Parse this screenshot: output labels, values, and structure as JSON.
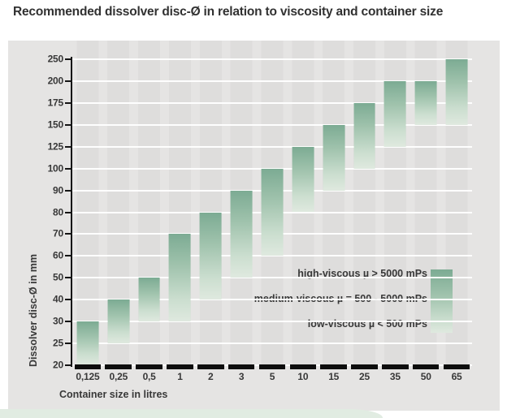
{
  "page": {
    "title": "Recommended dissolver disc-Ø in relation to viscosity and container size"
  },
  "chart_data": {
    "type": "bar",
    "subtype": "floating-range-bars-with-gradient",
    "title": "Recommended dissolver disc-Ø in relation to viscosity and container size",
    "xlabel": "Container size in litres",
    "ylabel": "Dissolver disc-Ø in mm",
    "x_categories": [
      "0,125",
      "0,25",
      "0,5",
      "1",
      "2",
      "3",
      "5",
      "10",
      "15",
      "25",
      "35",
      "50",
      "65"
    ],
    "y_ticks_top_to_bottom": [
      250,
      200,
      175,
      150,
      125,
      100,
      90,
      80,
      70,
      60,
      50,
      40,
      30,
      25,
      20
    ],
    "y_axis_note": "ordinal axis: listed tick values are evenly spaced",
    "bars": [
      {
        "container_litres": "0,125",
        "disc_mm_min": 20,
        "disc_mm_max": 30
      },
      {
        "container_litres": "0,25",
        "disc_mm_min": 25,
        "disc_mm_max": 40
      },
      {
        "container_litres": "0,5",
        "disc_mm_min": 30,
        "disc_mm_max": 50
      },
      {
        "container_litres": "1",
        "disc_mm_min": 30,
        "disc_mm_max": 70
      },
      {
        "container_litres": "2",
        "disc_mm_min": 40,
        "disc_mm_max": 80
      },
      {
        "container_litres": "3",
        "disc_mm_min": 50,
        "disc_mm_max": 90
      },
      {
        "container_litres": "5",
        "disc_mm_min": 60,
        "disc_mm_max": 100
      },
      {
        "container_litres": "10",
        "disc_mm_min": 80,
        "disc_mm_max": 125
      },
      {
        "container_litres": "15",
        "disc_mm_min": 90,
        "disc_mm_max": 150
      },
      {
        "container_litres": "25",
        "disc_mm_min": 100,
        "disc_mm_max": 175
      },
      {
        "container_litres": "35",
        "disc_mm_min": 125,
        "disc_mm_max": 200
      },
      {
        "container_litres": "50",
        "disc_mm_min": 150,
        "disc_mm_max": 200
      },
      {
        "container_litres": "65",
        "disc_mm_min": 150,
        "disc_mm_max": 250
      }
    ],
    "legend": {
      "lines": [
        "high-viscous µ > 5000 mPs",
        "medium-viscous µ = 500 - 5000 mPs",
        "low-viscous µ < 500 mPs"
      ],
      "swatch_meaning": "gradient: dark green top = high viscosity (large disc), pale green bottom = low viscosity (small disc)",
      "position": "inside lower-right"
    },
    "grid": "horizontal white gridlines at every y tick; vertical grey column stripes under bars",
    "colors": {
      "bar_gradient_top": "#7cab93",
      "bar_gradient_bottom": "#dfe9df",
      "panel_background": "#e5e4e3",
      "column_stripe": "#dedddc",
      "gridline": "#ffffff",
      "axis_line": "#151515",
      "text": "#383838",
      "footer_band": "#e1ece2"
    }
  }
}
